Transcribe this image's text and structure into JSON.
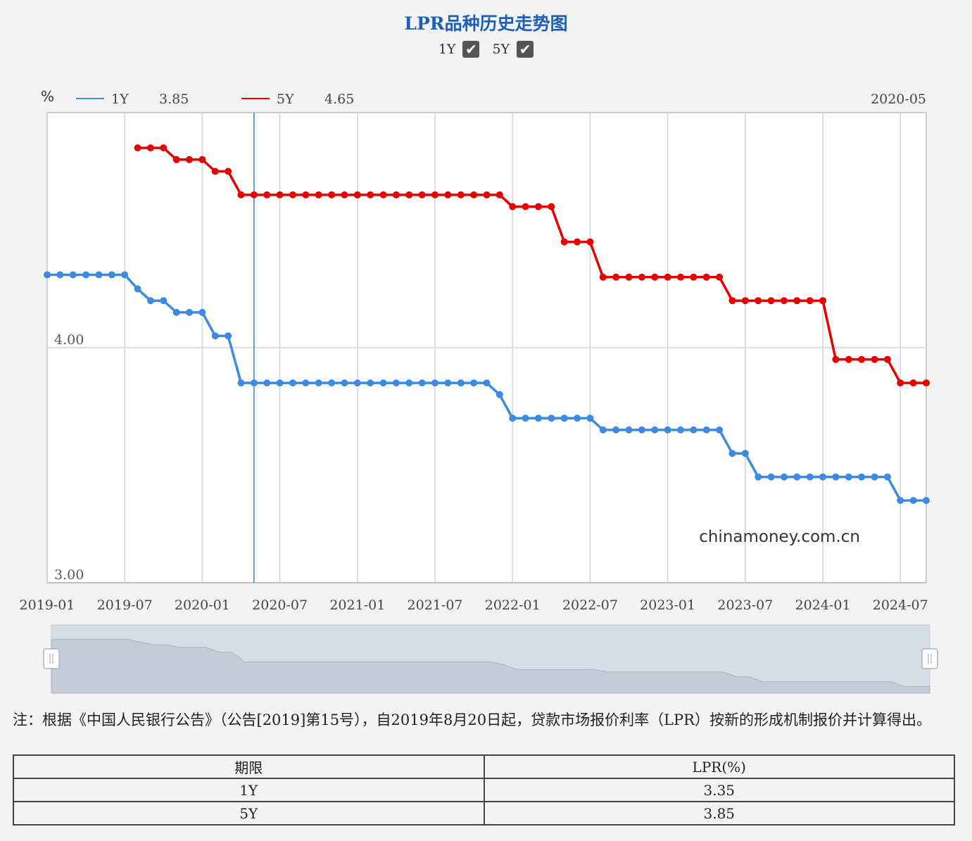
{
  "title": "LPR品种历史走势图",
  "toggles": [
    {
      "label": "1Y",
      "checked": true
    },
    {
      "label": "5Y",
      "checked": true
    }
  ],
  "legend": {
    "unit": "%",
    "items": [
      {
        "name": "1Y",
        "value": "3.85",
        "color": "#3c8be0"
      },
      {
        "name": "5Y",
        "value": "4.65",
        "color": "#e60000"
      }
    ],
    "date": "2020-05"
  },
  "watermark": "chinamoney.com.cn",
  "note": "注：根据《中国人民银行公告》（公告[2019]第15号），自2019年8月20日起，贷款市场报价利率（LPR）按新的形成机制报价并计算得出。",
  "table": {
    "headers": [
      "期限",
      "LPR(%)"
    ],
    "rows": [
      {
        "term": "1Y",
        "rate": "3.35"
      },
      {
        "term": "5Y",
        "rate": "3.85"
      }
    ]
  },
  "chart_data": {
    "type": "line",
    "title": "LPR品种历史走势图",
    "ylabel": "%",
    "ylim": [
      3.0,
      5.0
    ],
    "yticks": [
      "3.00",
      "4.00"
    ],
    "xticks": [
      "2019-01",
      "2019-07",
      "2020-01",
      "2020-07",
      "2021-01",
      "2021-07",
      "2022-01",
      "2022-07",
      "2023-01",
      "2023-07",
      "2024-01",
      "2024-07"
    ],
    "xlim": [
      "2019-01",
      "2024-09"
    ],
    "crosshair": "2020-05",
    "series": [
      {
        "name": "1Y",
        "color": "#3c8be0",
        "points": [
          [
            "2019-01",
            4.31
          ],
          [
            "2019-02",
            4.31
          ],
          [
            "2019-03",
            4.31
          ],
          [
            "2019-04",
            4.31
          ],
          [
            "2019-05",
            4.31
          ],
          [
            "2019-06",
            4.31
          ],
          [
            "2019-07",
            4.31
          ],
          [
            "2019-08",
            4.25
          ],
          [
            "2019-09",
            4.2
          ],
          [
            "2019-10",
            4.2
          ],
          [
            "2019-11",
            4.15
          ],
          [
            "2019-12",
            4.15
          ],
          [
            "2020-01",
            4.15
          ],
          [
            "2020-02",
            4.05
          ],
          [
            "2020-03",
            4.05
          ],
          [
            "2020-04",
            3.85
          ],
          [
            "2020-05",
            3.85
          ],
          [
            "2020-06",
            3.85
          ],
          [
            "2020-07",
            3.85
          ],
          [
            "2020-08",
            3.85
          ],
          [
            "2020-09",
            3.85
          ],
          [
            "2020-10",
            3.85
          ],
          [
            "2020-11",
            3.85
          ],
          [
            "2020-12",
            3.85
          ],
          [
            "2021-01",
            3.85
          ],
          [
            "2021-02",
            3.85
          ],
          [
            "2021-03",
            3.85
          ],
          [
            "2021-04",
            3.85
          ],
          [
            "2021-05",
            3.85
          ],
          [
            "2021-06",
            3.85
          ],
          [
            "2021-07",
            3.85
          ],
          [
            "2021-08",
            3.85
          ],
          [
            "2021-09",
            3.85
          ],
          [
            "2021-10",
            3.85
          ],
          [
            "2021-11",
            3.85
          ],
          [
            "2021-12",
            3.8
          ],
          [
            "2022-01",
            3.7
          ],
          [
            "2022-02",
            3.7
          ],
          [
            "2022-03",
            3.7
          ],
          [
            "2022-04",
            3.7
          ],
          [
            "2022-05",
            3.7
          ],
          [
            "2022-06",
            3.7
          ],
          [
            "2022-07",
            3.7
          ],
          [
            "2022-08",
            3.65
          ],
          [
            "2022-09",
            3.65
          ],
          [
            "2022-10",
            3.65
          ],
          [
            "2022-11",
            3.65
          ],
          [
            "2022-12",
            3.65
          ],
          [
            "2023-01",
            3.65
          ],
          [
            "2023-02",
            3.65
          ],
          [
            "2023-03",
            3.65
          ],
          [
            "2023-04",
            3.65
          ],
          [
            "2023-05",
            3.65
          ],
          [
            "2023-06",
            3.55
          ],
          [
            "2023-07",
            3.55
          ],
          [
            "2023-08",
            3.45
          ],
          [
            "2023-09",
            3.45
          ],
          [
            "2023-10",
            3.45
          ],
          [
            "2023-11",
            3.45
          ],
          [
            "2023-12",
            3.45
          ],
          [
            "2024-01",
            3.45
          ],
          [
            "2024-02",
            3.45
          ],
          [
            "2024-03",
            3.45
          ],
          [
            "2024-04",
            3.45
          ],
          [
            "2024-05",
            3.45
          ],
          [
            "2024-06",
            3.45
          ],
          [
            "2024-07",
            3.35
          ],
          [
            "2024-08",
            3.35
          ],
          [
            "2024-09",
            3.35
          ]
        ]
      },
      {
        "name": "5Y",
        "color": "#e60000",
        "points": [
          [
            "2019-08",
            4.85
          ],
          [
            "2019-09",
            4.85
          ],
          [
            "2019-10",
            4.85
          ],
          [
            "2019-11",
            4.8
          ],
          [
            "2019-12",
            4.8
          ],
          [
            "2020-01",
            4.8
          ],
          [
            "2020-02",
            4.75
          ],
          [
            "2020-03",
            4.75
          ],
          [
            "2020-04",
            4.65
          ],
          [
            "2020-05",
            4.65
          ],
          [
            "2020-06",
            4.65
          ],
          [
            "2020-07",
            4.65
          ],
          [
            "2020-08",
            4.65
          ],
          [
            "2020-09",
            4.65
          ],
          [
            "2020-10",
            4.65
          ],
          [
            "2020-11",
            4.65
          ],
          [
            "2020-12",
            4.65
          ],
          [
            "2021-01",
            4.65
          ],
          [
            "2021-02",
            4.65
          ],
          [
            "2021-03",
            4.65
          ],
          [
            "2021-04",
            4.65
          ],
          [
            "2021-05",
            4.65
          ],
          [
            "2021-06",
            4.65
          ],
          [
            "2021-07",
            4.65
          ],
          [
            "2021-08",
            4.65
          ],
          [
            "2021-09",
            4.65
          ],
          [
            "2021-10",
            4.65
          ],
          [
            "2021-11",
            4.65
          ],
          [
            "2021-12",
            4.65
          ],
          [
            "2022-01",
            4.6
          ],
          [
            "2022-02",
            4.6
          ],
          [
            "2022-03",
            4.6
          ],
          [
            "2022-04",
            4.6
          ],
          [
            "2022-05",
            4.45
          ],
          [
            "2022-06",
            4.45
          ],
          [
            "2022-07",
            4.45
          ],
          [
            "2022-08",
            4.3
          ],
          [
            "2022-09",
            4.3
          ],
          [
            "2022-10",
            4.3
          ],
          [
            "2022-11",
            4.3
          ],
          [
            "2022-12",
            4.3
          ],
          [
            "2023-01",
            4.3
          ],
          [
            "2023-02",
            4.3
          ],
          [
            "2023-03",
            4.3
          ],
          [
            "2023-04",
            4.3
          ],
          [
            "2023-05",
            4.3
          ],
          [
            "2023-06",
            4.2
          ],
          [
            "2023-07",
            4.2
          ],
          [
            "2023-08",
            4.2
          ],
          [
            "2023-09",
            4.2
          ],
          [
            "2023-10",
            4.2
          ],
          [
            "2023-11",
            4.2
          ],
          [
            "2023-12",
            4.2
          ],
          [
            "2024-01",
            4.2
          ],
          [
            "2024-02",
            3.95
          ],
          [
            "2024-03",
            3.95
          ],
          [
            "2024-04",
            3.95
          ],
          [
            "2024-05",
            3.95
          ],
          [
            "2024-06",
            3.95
          ],
          [
            "2024-07",
            3.85
          ],
          [
            "2024-08",
            3.85
          ],
          [
            "2024-09",
            3.85
          ]
        ]
      }
    ]
  }
}
